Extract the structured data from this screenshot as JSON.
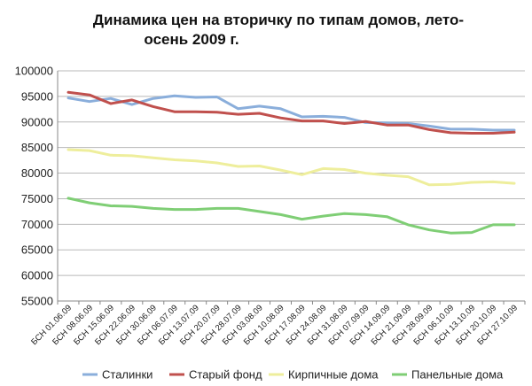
{
  "chart_data": {
    "type": "line",
    "title_lines": [
      "Динамика цен на вторичку по типам домов, лето-",
      "осень 2009 г."
    ],
    "ylim": [
      55000,
      100000
    ],
    "yticks": [
      55000,
      60000,
      65000,
      70000,
      75000,
      80000,
      85000,
      90000,
      95000,
      100000
    ],
    "grid": true,
    "legend_position": "bottom",
    "categories": [
      "БСН 01.06.09",
      "БСН 08.06.09",
      "БСН 15.06.09",
      "БСН 22.06.09",
      "БСН 30.06.09",
      "БСН 06.07.09",
      "БСН 13.07.09",
      "БСН 20.07.09",
      "БСН 28.07.09",
      "БСН 03.08.09",
      "БСН 10.08.09",
      "БСН 17.08.09",
      "БСН 24.08.09",
      "БСН 31.08.09",
      "БСН 07.09.09",
      "БСН 14.09.09",
      "БСН 21.09.09",
      "БСН 28.09.09",
      "БСН 06.10.09",
      "БСН 13.10.09",
      "БСН 20.10.09",
      "БСН 27.10.09"
    ],
    "xtick_labels": [
      "БСН 01.06.09",
      "БСН 08.06.09",
      "БСН 15.06.09",
      "БСН 22.06.09",
      "БСН 30.06.09",
      "БСН 06.07.09",
      "БСН 13.07.09",
      "БСН 20.07.09",
      "БСН 28.07.09",
      "БСН 03.08.09",
      "БСН 10.08.09",
      "БСН 17.08.09",
      "БСН 24.08.09",
      "БСН 31.08.09",
      "БСН 07.09.09",
      "БСН 14.09.09",
      "БСН 21.09.09",
      "БСН 28.09.09",
      "БСН 06.10.09",
      "БСН 13.10.09",
      "БСН 20.10.09",
      "БСН 27.10.09"
    ],
    "series": [
      {
        "name": "Сталинки",
        "color": "#8aaedb",
        "values": [
          94700,
          94000,
          94600,
          93400,
          94600,
          95100,
          94800,
          94900,
          92600,
          93100,
          92600,
          91000,
          91100,
          90900,
          89900,
          89800,
          89700,
          89200,
          88600,
          88600,
          88400,
          88400
        ]
      },
      {
        "name": "Старый фонд",
        "color": "#c0504d",
        "values": [
          95800,
          95300,
          93600,
          94300,
          93000,
          92000,
          92000,
          91900,
          91500,
          91700,
          90800,
          90200,
          90200,
          89700,
          90100,
          89400,
          89400,
          88500,
          87900,
          87800,
          87800,
          88000
        ]
      },
      {
        "name": "Кирпичные дома",
        "color": "#eeee9c",
        "values": [
          84600,
          84400,
          83500,
          83400,
          83000,
          82600,
          82400,
          82000,
          81300,
          81400,
          80600,
          79700,
          80900,
          80700,
          80000,
          79600,
          79300,
          77700,
          77800,
          78200,
          78300,
          78000
        ]
      },
      {
        "name": "Панельные дома",
        "color": "#7fce75",
        "values": [
          75100,
          74200,
          73600,
          73500,
          73100,
          72900,
          72900,
          73100,
          73100,
          72500,
          71900,
          71000,
          71600,
          72100,
          71900,
          71500,
          69900,
          68900,
          68300,
          68400,
          69900,
          69900
        ]
      }
    ]
  }
}
